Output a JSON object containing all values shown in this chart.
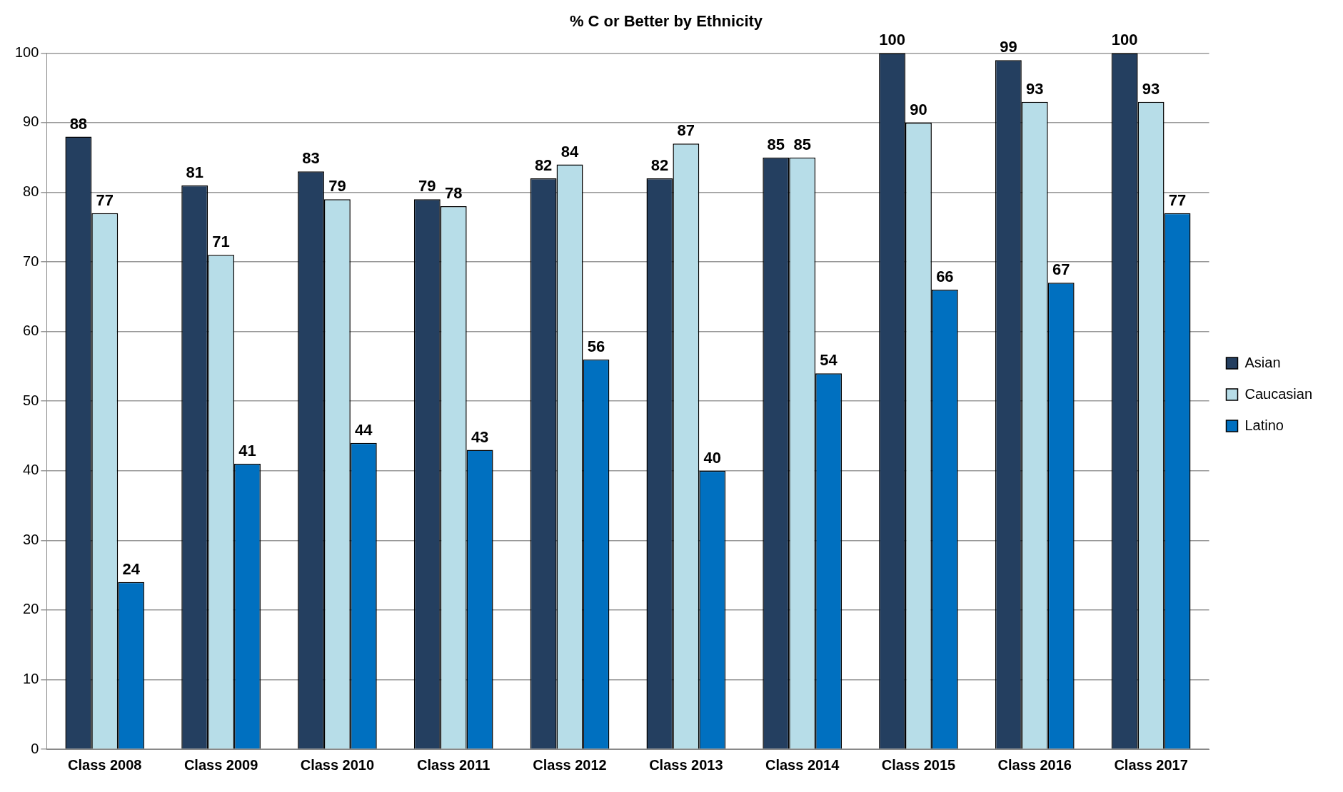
{
  "chart_data": {
    "type": "bar",
    "title": "% C or Better by Ethnicity",
    "categories": [
      "Class 2008",
      "Class 2009",
      "Class 2010",
      "Class 2011",
      "Class 2012",
      "Class 2013",
      "Class 2014",
      "Class 2015",
      "Class 2016",
      "Class 2017"
    ],
    "series": [
      {
        "name": "Asian",
        "color": "#243f60",
        "values": [
          88,
          81,
          83,
          79,
          82,
          82,
          85,
          100,
          99,
          100
        ]
      },
      {
        "name": "Caucasian",
        "color": "#b7dde8",
        "values": [
          77,
          71,
          79,
          78,
          84,
          87,
          85,
          90,
          93,
          93
        ]
      },
      {
        "name": "Latino",
        "color": "#0070c0",
        "values": [
          24,
          41,
          44,
          43,
          56,
          40,
          54,
          66,
          67,
          77
        ]
      }
    ],
    "ylim": [
      0,
      100
    ],
    "yticks": [
      0,
      10,
      20,
      30,
      40,
      50,
      60,
      70,
      80,
      90,
      100
    ],
    "grid": "y",
    "legend": "right",
    "data_labels": true
  }
}
